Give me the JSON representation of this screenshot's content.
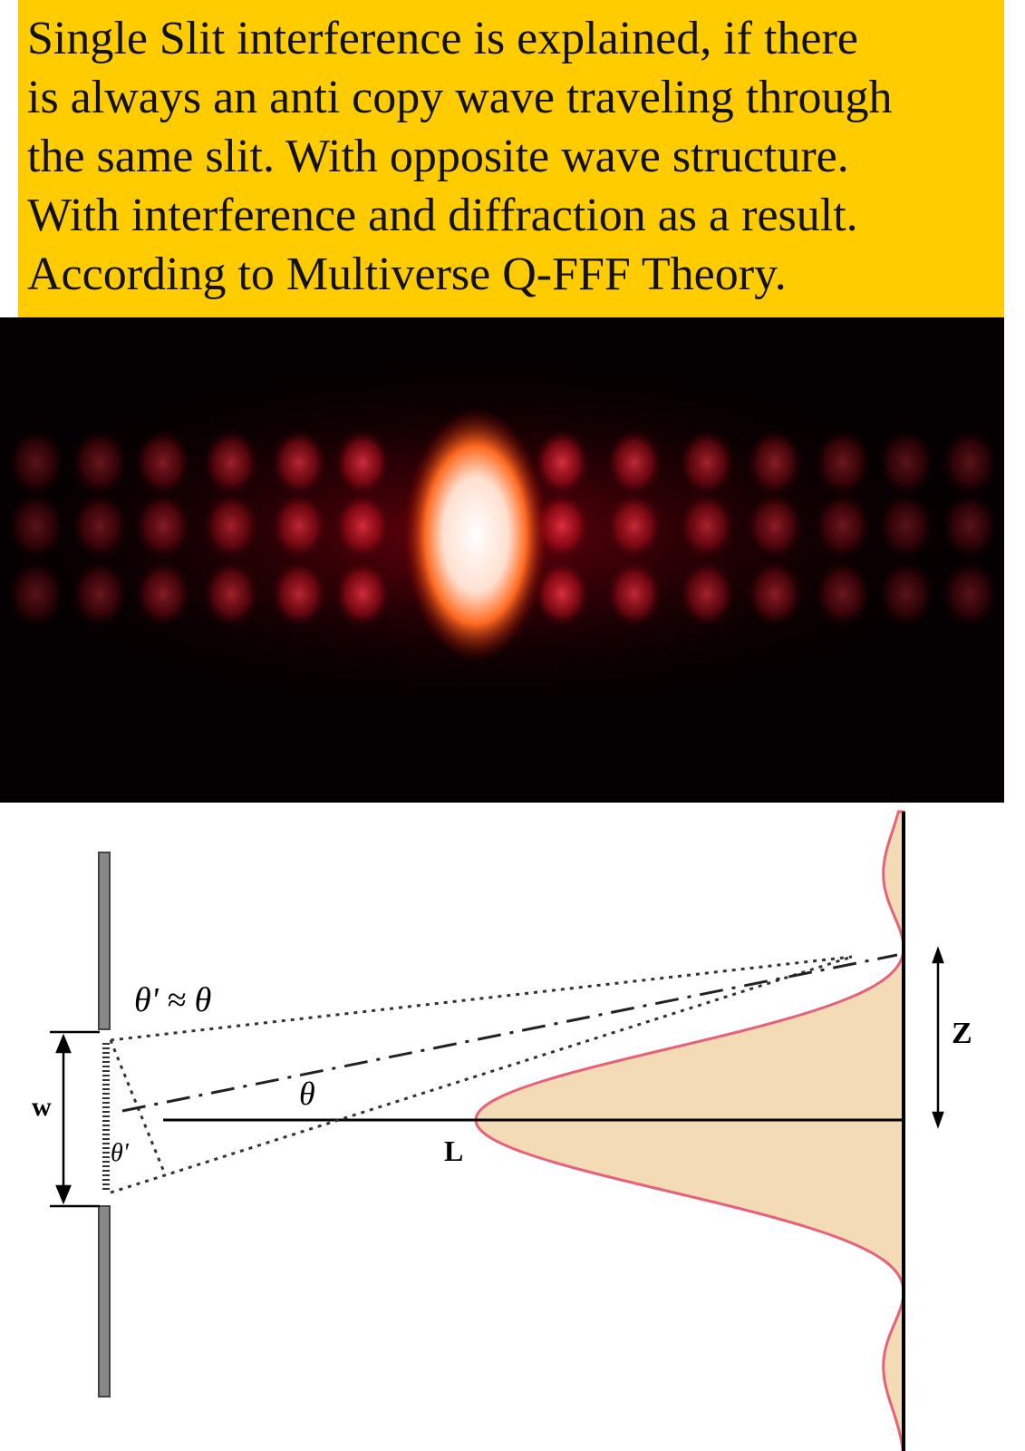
{
  "header": {
    "lines": [
      "Single Slit interference is explained, if there",
      "is always an anti copy wave traveling through",
      "the same slit. With opposite wave structure.",
      "With interference and diffraction as a result.",
      "According to Multiverse  Q-FFF Theory."
    ]
  },
  "diagram": {
    "labels": {
      "angle_relation": "θ' ≈ θ",
      "theta": "θ",
      "theta_prime": "θ'",
      "width": "w",
      "distance": "L",
      "offset": "Z"
    }
  }
}
